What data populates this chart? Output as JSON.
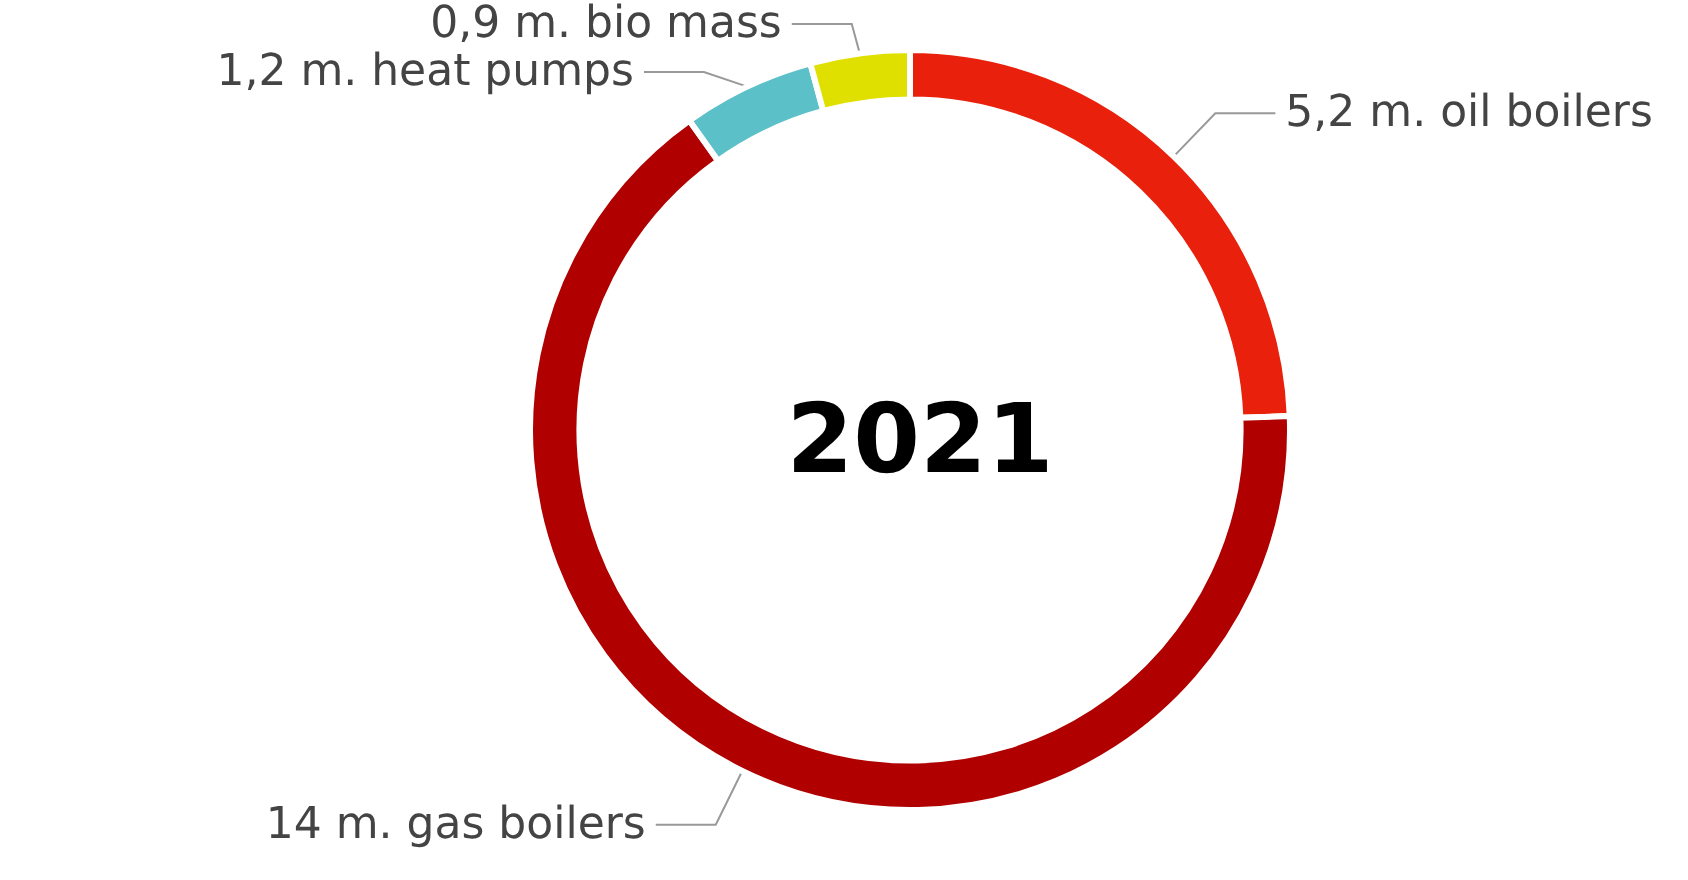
{
  "chart_data": {
    "type": "donut",
    "title": "2021",
    "categories": [
      "5,2 m. oil boilers",
      "14 m. gas boilers",
      "1,2 m. heat pumps",
      "0,9 m. bio mass"
    ],
    "values": [
      5.2,
      14,
      1.2,
      0.9
    ],
    "colors": [
      "#e8200c",
      "#b00000",
      "#5bc0c8",
      "#e0e000"
    ],
    "legend": false
  }
}
